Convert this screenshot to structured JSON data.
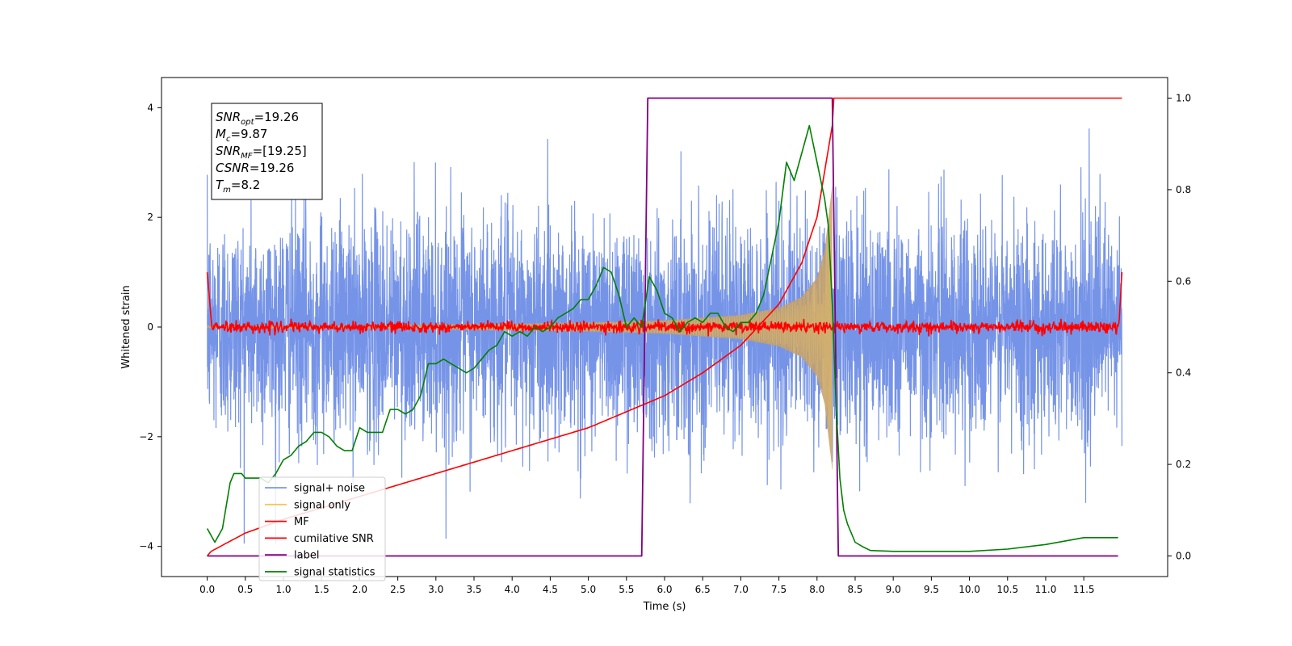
{
  "chart_data": {
    "type": "line",
    "title": "",
    "xlabel": "Time (s)",
    "ylabel": "Whitened strain",
    "xlim": [
      -0.6,
      12.6
    ],
    "ylim": [
      -4.55,
      4.55
    ],
    "y2lim": [
      -0.045,
      1.045
    ],
    "x_ticks": [
      "0.0",
      "0.5",
      "1.0",
      "1.5",
      "2.0",
      "2.5",
      "3.0",
      "3.5",
      "4.0",
      "4.5",
      "5.0",
      "5.5",
      "6.0",
      "6.5",
      "7.0",
      "7.5",
      "8.0",
      "8.5",
      "9.0",
      "9.5",
      "10.0",
      "10.5",
      "11.0",
      "11.5"
    ],
    "x_tick_values": [
      0,
      0.5,
      1,
      1.5,
      2,
      2.5,
      3,
      3.5,
      4,
      4.5,
      5,
      5.5,
      6,
      6.5,
      7,
      7.5,
      8,
      8.5,
      9,
      9.5,
      10,
      10.5,
      11,
      11.5
    ],
    "y_ticks": [
      "4",
      "2",
      "0",
      "−2",
      "−4"
    ],
    "y_tick_values": [
      4,
      2,
      0,
      -2,
      -4
    ],
    "y2_ticks": [
      "1.0",
      "0.8",
      "0.6",
      "0.4",
      "0.2",
      "0.0"
    ],
    "y2_tick_values": [
      1,
      0.8,
      0.6,
      0.4,
      0.2,
      0
    ],
    "grid": false,
    "legend_placement": "lower-left",
    "annotation": [
      {
        "base": "SNR",
        "sub": "opt",
        "rest": "=19.26"
      },
      {
        "base": "M",
        "sub": "c",
        "rest": "=9.87"
      },
      {
        "base": "SNR",
        "sub": "MF",
        "rest": "=[19.25]"
      },
      {
        "base": "CSNR",
        "sub": "",
        "rest": "=19.26"
      },
      {
        "base": "T",
        "sub": "m",
        "rest": "=8.2"
      }
    ],
    "series": [
      {
        "name": "signal+ noise",
        "color": "#6f8ee6",
        "axis": "left",
        "style": "noise",
        "x_range": [
          0,
          12
        ],
        "noise_std": 1.0,
        "merger_time": 8.2
      },
      {
        "name": "signal only",
        "color": "#f5c65a",
        "axis": "left",
        "style": "chirp",
        "x_range": [
          0,
          8.2
        ],
        "envelope_x": [
          0,
          2,
          4,
          5,
          6,
          7,
          7.5,
          7.8,
          8.0,
          8.1,
          8.2
        ],
        "envelope_y": [
          0.02,
          0.03,
          0.06,
          0.08,
          0.12,
          0.22,
          0.35,
          0.55,
          0.9,
          1.4,
          2.6
        ]
      },
      {
        "name": "MF",
        "color": "#ff0000",
        "axis": "left",
        "style": "mf",
        "x_range": [
          0,
          12
        ],
        "noise_std": 0.05,
        "edge_value": 1.0
      },
      {
        "name": "cumilative SNR",
        "color": "#ff0000",
        "axis": "right",
        "x": [
          0,
          0.05,
          0.5,
          1,
          2,
          3,
          4,
          5,
          6,
          6.5,
          7,
          7.5,
          7.8,
          8.0,
          8.1,
          8.2,
          8.22,
          12
        ],
        "y": [
          0.0,
          0.01,
          0.05,
          0.08,
          0.13,
          0.18,
          0.23,
          0.28,
          0.35,
          0.4,
          0.46,
          0.55,
          0.64,
          0.74,
          0.84,
          0.94,
          1.0,
          1.0
        ]
      },
      {
        "name": "label",
        "color": "#800080",
        "axis": "right",
        "x": [
          0,
          5.7,
          5.78,
          8.2,
          8.28,
          11.95
        ],
        "y": [
          0,
          0,
          1,
          1,
          0,
          0
        ]
      },
      {
        "name": "signal statistics",
        "color": "#008000",
        "axis": "right",
        "x": [
          0,
          0.1,
          0.2,
          0.3,
          0.35,
          0.45,
          0.5,
          0.6,
          0.7,
          0.8,
          0.9,
          1.0,
          1.1,
          1.2,
          1.3,
          1.4,
          1.5,
          1.6,
          1.7,
          1.8,
          1.9,
          2.0,
          2.1,
          2.2,
          2.3,
          2.4,
          2.5,
          2.6,
          2.7,
          2.8,
          2.9,
          3.0,
          3.1,
          3.2,
          3.3,
          3.4,
          3.5,
          3.6,
          3.7,
          3.8,
          3.9,
          4.0,
          4.1,
          4.2,
          4.3,
          4.4,
          4.5,
          4.6,
          4.7,
          4.8,
          4.9,
          5.0,
          5.1,
          5.2,
          5.3,
          5.4,
          5.5,
          5.6,
          5.7,
          5.8,
          5.9,
          6.0,
          6.1,
          6.2,
          6.3,
          6.4,
          6.5,
          6.6,
          6.7,
          6.8,
          6.9,
          7.0,
          7.1,
          7.2,
          7.3,
          7.4,
          7.5,
          7.6,
          7.7,
          7.8,
          7.9,
          8.0,
          8.1,
          8.15,
          8.2,
          8.25,
          8.3,
          8.35,
          8.4,
          8.5,
          8.6,
          8.7,
          9.0,
          9.5,
          10.0,
          10.5,
          11.0,
          11.5,
          11.95
        ],
        "y": [
          0.06,
          0.03,
          0.06,
          0.16,
          0.18,
          0.18,
          0.17,
          0.17,
          0.17,
          0.16,
          0.18,
          0.21,
          0.22,
          0.24,
          0.25,
          0.27,
          0.27,
          0.26,
          0.24,
          0.23,
          0.23,
          0.28,
          0.27,
          0.27,
          0.27,
          0.32,
          0.32,
          0.31,
          0.32,
          0.35,
          0.42,
          0.42,
          0.43,
          0.42,
          0.41,
          0.4,
          0.41,
          0.43,
          0.45,
          0.46,
          0.49,
          0.48,
          0.49,
          0.48,
          0.5,
          0.49,
          0.5,
          0.52,
          0.53,
          0.54,
          0.56,
          0.56,
          0.59,
          0.63,
          0.62,
          0.57,
          0.5,
          0.52,
          0.5,
          0.61,
          0.58,
          0.53,
          0.52,
          0.49,
          0.51,
          0.52,
          0.51,
          0.53,
          0.53,
          0.5,
          0.49,
          0.51,
          0.51,
          0.53,
          0.57,
          0.65,
          0.73,
          0.86,
          0.82,
          0.88,
          0.94,
          0.86,
          0.78,
          0.72,
          0.55,
          0.33,
          0.17,
          0.1,
          0.07,
          0.03,
          0.02,
          0.012,
          0.01,
          0.01,
          0.01,
          0.015,
          0.025,
          0.04,
          0.04
        ]
      }
    ]
  }
}
